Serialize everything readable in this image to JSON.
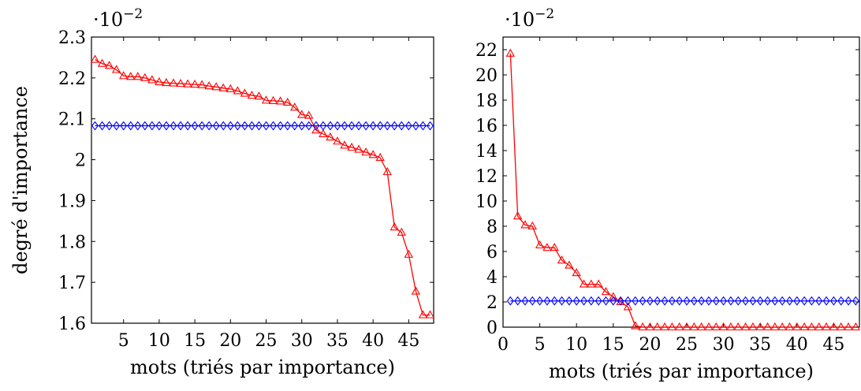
{
  "chart_data": [
    {
      "type": "line",
      "xlabel": "mots (triés par importance)",
      "ylabel": "degré d'importance",
      "yscale_label": "·10",
      "yscale_exp": "−2",
      "xlim": [
        0.5,
        48.5
      ],
      "ylim": [
        1.6,
        2.3
      ],
      "xticks": [
        5,
        10,
        15,
        20,
        25,
        30,
        35,
        40,
        45
      ],
      "yticks": [
        1.6,
        1.7,
        1.8,
        1.9,
        2,
        2.1,
        2.2,
        2.3
      ],
      "ytick_labels": [
        "1.6",
        "1.7",
        "1.8",
        "1.9",
        "2",
        "2.1",
        "2.2",
        "2.3"
      ],
      "series": [
        {
          "color": "#ff0000",
          "marker": "triangle",
          "x": [
            1,
            2,
            3,
            4,
            5,
            6,
            7,
            8,
            9,
            10,
            11,
            12,
            13,
            14,
            15,
            16,
            17,
            18,
            19,
            20,
            21,
            22,
            23,
            24,
            25,
            26,
            27,
            28,
            29,
            30,
            31,
            32,
            33,
            34,
            35,
            36,
            37,
            38,
            39,
            40,
            41,
            42,
            43,
            44,
            45,
            46,
            47,
            48
          ],
          "y": [
            2.245,
            2.235,
            2.23,
            2.22,
            2.205,
            2.203,
            2.203,
            2.2,
            2.195,
            2.19,
            2.188,
            2.187,
            2.186,
            2.185,
            2.184,
            2.183,
            2.18,
            2.178,
            2.175,
            2.173,
            2.168,
            2.162,
            2.157,
            2.155,
            2.145,
            2.144,
            2.143,
            2.14,
            2.128,
            2.11,
            2.108,
            2.072,
            2.063,
            2.055,
            2.045,
            2.035,
            2.03,
            2.025,
            2.018,
            2.012,
            2.005,
            1.97,
            1.835,
            1.822,
            1.768,
            1.678,
            1.62,
            1.62
          ]
        },
        {
          "color": "#0000ff",
          "marker": "diamond",
          "x": [
            1,
            2,
            3,
            4,
            5,
            6,
            7,
            8,
            9,
            10,
            11,
            12,
            13,
            14,
            15,
            16,
            17,
            18,
            19,
            20,
            21,
            22,
            23,
            24,
            25,
            26,
            27,
            28,
            29,
            30,
            31,
            32,
            33,
            34,
            35,
            36,
            37,
            38,
            39,
            40,
            41,
            42,
            43,
            44,
            45,
            46,
            47,
            48
          ],
          "y": [
            2.083,
            2.083,
            2.083,
            2.083,
            2.083,
            2.083,
            2.083,
            2.083,
            2.083,
            2.083,
            2.083,
            2.083,
            2.083,
            2.083,
            2.083,
            2.083,
            2.083,
            2.083,
            2.083,
            2.083,
            2.083,
            2.083,
            2.083,
            2.083,
            2.083,
            2.083,
            2.083,
            2.083,
            2.083,
            2.083,
            2.083,
            2.083,
            2.083,
            2.083,
            2.083,
            2.083,
            2.083,
            2.083,
            2.083,
            2.083,
            2.083,
            2.083,
            2.083,
            2.083,
            2.083,
            2.083,
            2.083,
            2.083
          ]
        }
      ]
    },
    {
      "type": "line",
      "xlabel": "mots (triés par importance)",
      "ylabel": "",
      "yscale_label": "·10",
      "yscale_exp": "−2",
      "xlim": [
        0,
        48.5
      ],
      "ylim": [
        0,
        23
      ],
      "xticks": [
        0,
        5,
        10,
        15,
        20,
        25,
        30,
        35,
        40,
        45
      ],
      "yticks": [
        0,
        2,
        4,
        6,
        8,
        10,
        12,
        14,
        16,
        18,
        20,
        22
      ],
      "ytick_labels": [
        "0",
        "2",
        "4",
        "6",
        "8",
        "10",
        "12",
        "14",
        "16",
        "18",
        "20",
        "22"
      ],
      "series": [
        {
          "color": "#ff0000",
          "marker": "triangle",
          "x": [
            1,
            2,
            3,
            4,
            5,
            6,
            7,
            8,
            9,
            10,
            11,
            12,
            13,
            14,
            15,
            16,
            17,
            18,
            19,
            20,
            21,
            22,
            23,
            24,
            25,
            26,
            27,
            28,
            29,
            30,
            31,
            32,
            33,
            34,
            35,
            36,
            37,
            38,
            39,
            40,
            41,
            42,
            43,
            44,
            45,
            46,
            47,
            48
          ],
          "y": [
            21.7,
            8.8,
            8.1,
            8.0,
            6.5,
            6.3,
            6.3,
            5.3,
            4.9,
            4.3,
            3.4,
            3.4,
            3.4,
            2.8,
            2.4,
            2.0,
            1.6,
            0.1,
            0,
            0,
            0,
            0,
            0,
            0,
            0,
            0,
            0,
            0,
            0,
            0,
            0,
            0,
            0,
            0,
            0,
            0,
            0,
            0,
            0,
            0,
            0,
            0,
            0,
            0,
            0,
            0,
            0,
            0
          ]
        },
        {
          "color": "#0000ff",
          "marker": "diamond",
          "x": [
            1,
            2,
            3,
            4,
            5,
            6,
            7,
            8,
            9,
            10,
            11,
            12,
            13,
            14,
            15,
            16,
            17,
            18,
            19,
            20,
            21,
            22,
            23,
            24,
            25,
            26,
            27,
            28,
            29,
            30,
            31,
            32,
            33,
            34,
            35,
            36,
            37,
            38,
            39,
            40,
            41,
            42,
            43,
            44,
            45,
            46,
            47,
            48
          ],
          "y": [
            2.08,
            2.08,
            2.08,
            2.08,
            2.08,
            2.08,
            2.08,
            2.08,
            2.08,
            2.08,
            2.08,
            2.08,
            2.08,
            2.08,
            2.08,
            2.08,
            2.08,
            2.08,
            2.08,
            2.08,
            2.08,
            2.08,
            2.08,
            2.08,
            2.08,
            2.08,
            2.08,
            2.08,
            2.08,
            2.08,
            2.08,
            2.08,
            2.08,
            2.08,
            2.08,
            2.08,
            2.08,
            2.08,
            2.08,
            2.08,
            2.08,
            2.08,
            2.08,
            2.08,
            2.08,
            2.08,
            2.08,
            2.08
          ]
        }
      ]
    }
  ]
}
